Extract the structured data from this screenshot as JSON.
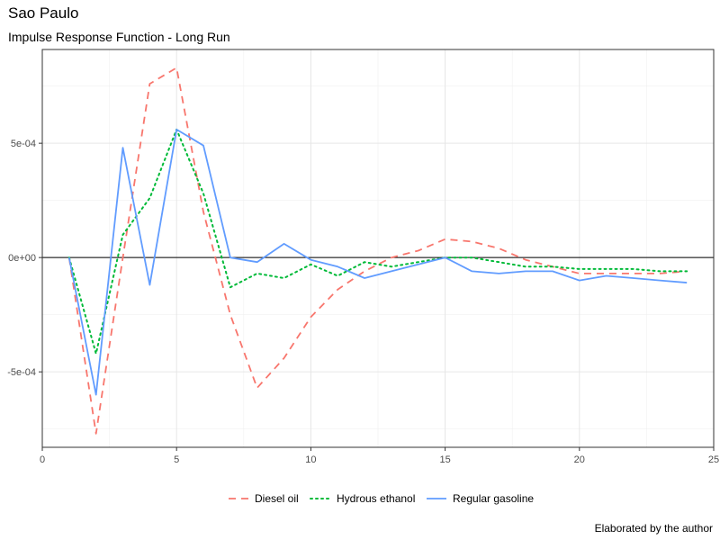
{
  "chart_data": {
    "type": "line",
    "title": "Sao Paulo",
    "subtitle": "Impulse Response Function - Long Run",
    "caption": "Elaborated by the author",
    "xlabel": "",
    "ylabel": "",
    "xlim": [
      0,
      25
    ],
    "ylim": [
      -0.00083,
      0.00091
    ],
    "x_ticks": [
      0,
      5,
      10,
      15,
      20,
      25
    ],
    "y_ticks": [
      -0.0005,
      0,
      0.0005
    ],
    "y_tick_labels": [
      "-5e-04",
      "0e+00",
      "5e-04"
    ],
    "grid": true,
    "legend_position": "bottom",
    "x": [
      1,
      2,
      3,
      4,
      5,
      6,
      7,
      8,
      9,
      10,
      11,
      12,
      13,
      14,
      15,
      16,
      17,
      18,
      19,
      20,
      21,
      22,
      23,
      24
    ],
    "series": [
      {
        "name": "Diesel oil",
        "color": "#F8766D",
        "dash": "8,6",
        "values": [
          0,
          -0.00077,
          0,
          0.00076,
          0.00083,
          0.0002,
          -0.00025,
          -0.00057,
          -0.00044,
          -0.00026,
          -0.00014,
          -6e-05,
          0,
          3e-05,
          8e-05,
          7e-05,
          4e-05,
          -1e-05,
          -4e-05,
          -7e-05,
          -7e-05,
          -7e-05,
          -7e-05,
          -6e-05
        ]
      },
      {
        "name": "Hydrous ethanol",
        "color": "#00BA38",
        "dash": "2,4",
        "values": [
          0,
          -0.00042,
          0.0001,
          0.00026,
          0.00056,
          0.00028,
          -0.00013,
          -7e-05,
          -9e-05,
          -3e-05,
          -8e-05,
          -2e-05,
          -4e-05,
          -2e-05,
          0,
          0,
          -2e-05,
          -4e-05,
          -4e-05,
          -5e-05,
          -5e-05,
          -5e-05,
          -6e-05,
          -6e-05
        ]
      },
      {
        "name": "Regular gasoline",
        "color": "#619CFF",
        "dash": "",
        "values": [
          0,
          -0.0006,
          0.00048,
          -0.00012,
          0.00056,
          0.00049,
          0,
          -2e-05,
          6e-05,
          -1e-05,
          -4e-05,
          -9e-05,
          -6e-05,
          -3e-05,
          0,
          -6e-05,
          -7e-05,
          -6e-05,
          -6e-05,
          -0.0001,
          -8e-05,
          -9e-05,
          -0.0001,
          -0.00011
        ]
      }
    ]
  }
}
